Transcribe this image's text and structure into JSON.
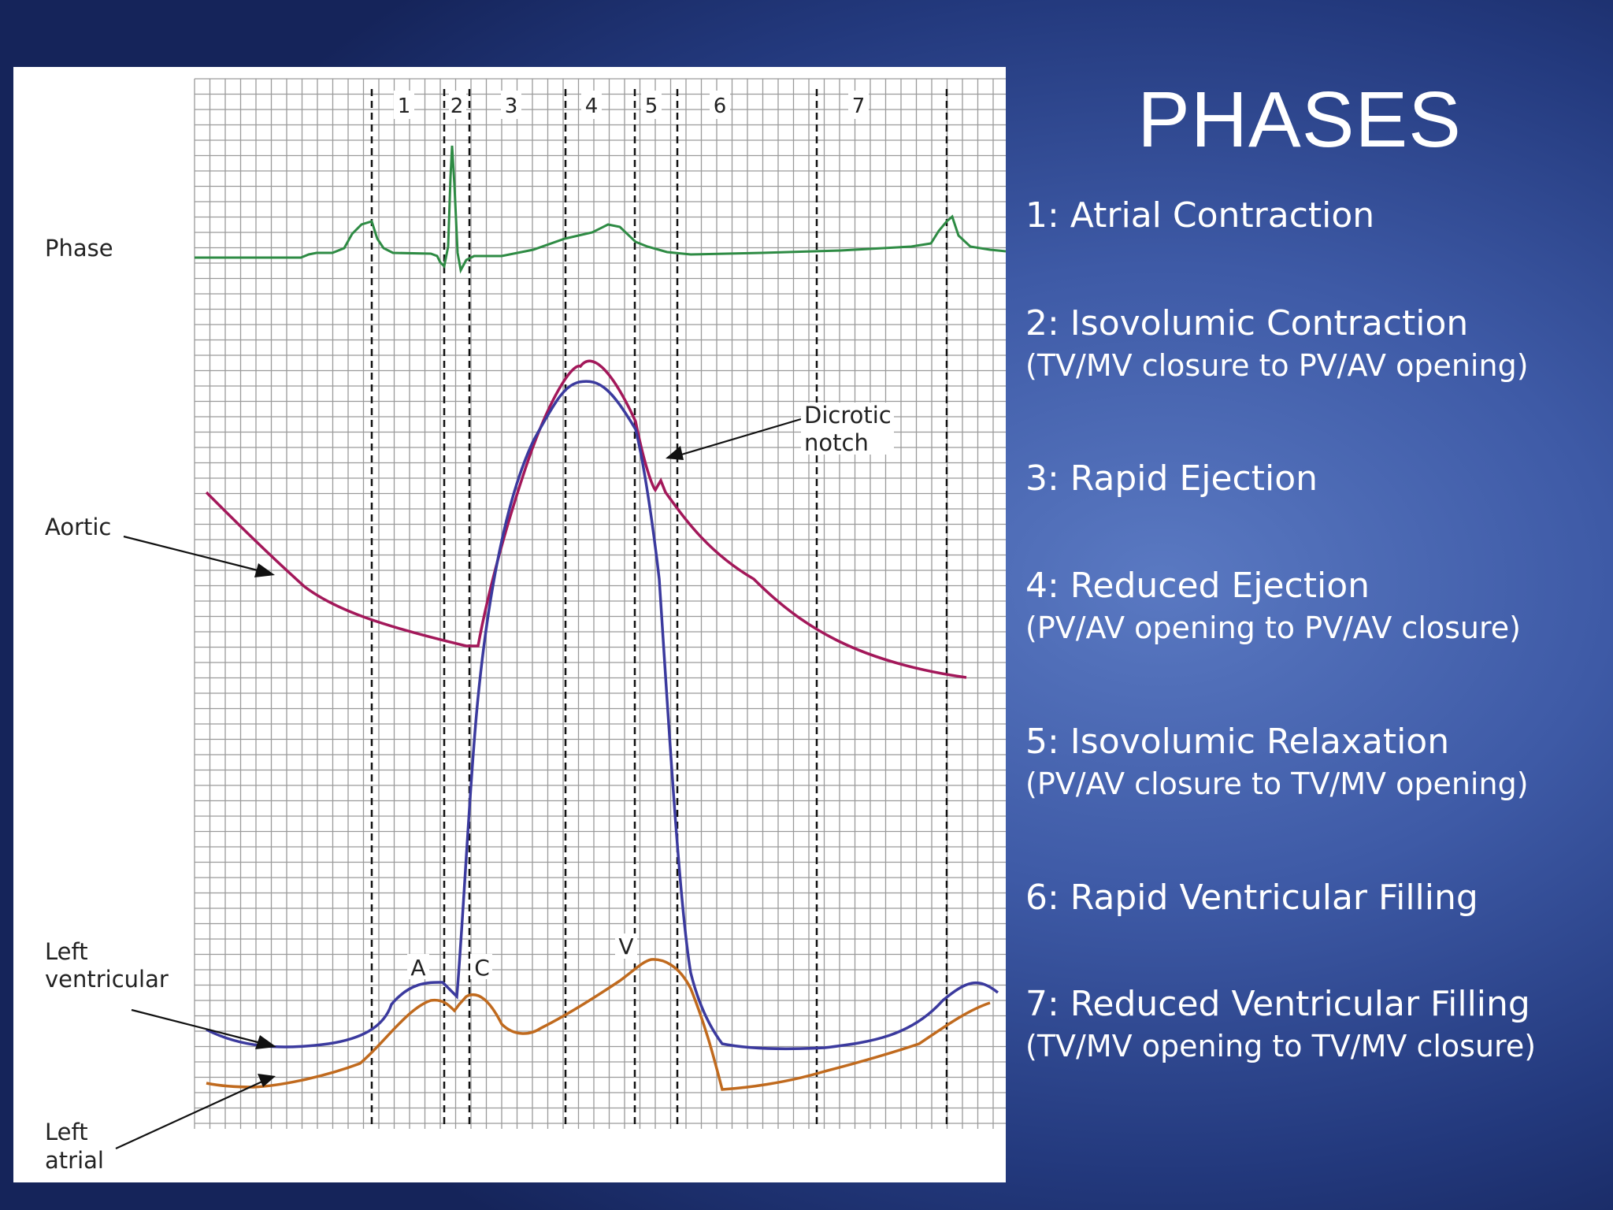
{
  "title": "PHASES",
  "phases": [
    {
      "name": "1: Atrial Contraction",
      "note": ""
    },
    {
      "name": "2: Isovolumic Contraction",
      "note": "(TV/MV closure  to PV/AV opening)"
    },
    {
      "name": "3: Rapid Ejection",
      "note": ""
    },
    {
      "name": "4: Reduced Ejection",
      "note": "(PV/AV opening to PV/AV closure)"
    },
    {
      "name": "5: Isovolumic Relaxation",
      "note": "(PV/AV closure to TV/MV opening)"
    },
    {
      "name": "6: Rapid Ventricular Filling",
      "note": ""
    },
    {
      "name": "7: Reduced Ventricular Filling",
      "note": "(TV/MV opening to TV/MV closure)"
    }
  ],
  "figure": {
    "phase_numbers": [
      "1",
      "2",
      "3",
      "4",
      "5",
      "6",
      "7"
    ],
    "labels": {
      "phase": "Phase",
      "aortic": "Aortic",
      "dicrotic_line1": "Dicrotic",
      "dicrotic_line2": "notch",
      "lv_line1": "Left",
      "lv_line2": "ventricular",
      "la_line1": "Left",
      "la_line2": "atrial",
      "wave_a": "A",
      "wave_c": "C",
      "wave_v": "V"
    },
    "colors": {
      "ecg": "#2e8b44",
      "aortic": "#a3185a",
      "left_ventricular": "#3b3a9e",
      "left_atrial": "#c06a1e",
      "grid": "#9a9a9a"
    }
  }
}
